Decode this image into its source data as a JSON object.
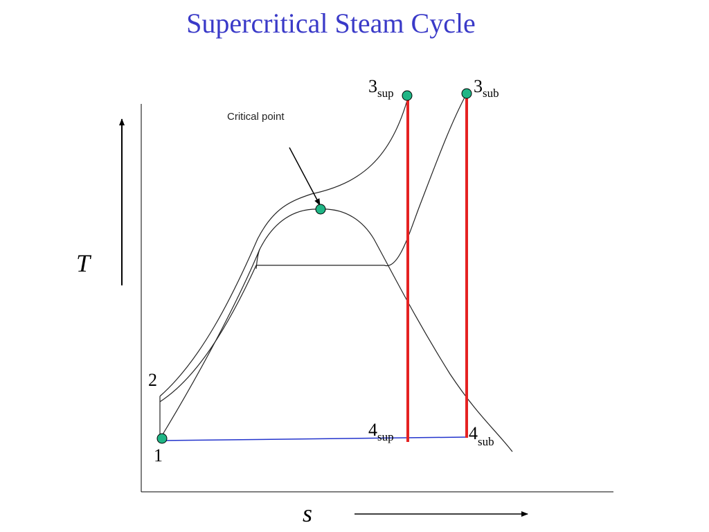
{
  "title": "Supercritical Steam Cycle",
  "axes": {
    "y_label": "T",
    "x_label": "s"
  },
  "annotation": {
    "critical_point": "Critical point"
  },
  "state_points": {
    "p1": "1",
    "p2": "2",
    "p3_sup": {
      "main": "3",
      "sub": "sup"
    },
    "p3_sub": {
      "main": "3",
      "sub": "sub"
    },
    "p4_sup": {
      "main": "4",
      "sub": "sup"
    },
    "p4_sub": {
      "main": "4",
      "sub": "sub"
    }
  },
  "colors": {
    "title": "#3a3ac8",
    "marker_fill": "#1fb585",
    "expansion_line": "#e52222",
    "condensation_line": "#2233cc",
    "curve": "#222222"
  }
}
